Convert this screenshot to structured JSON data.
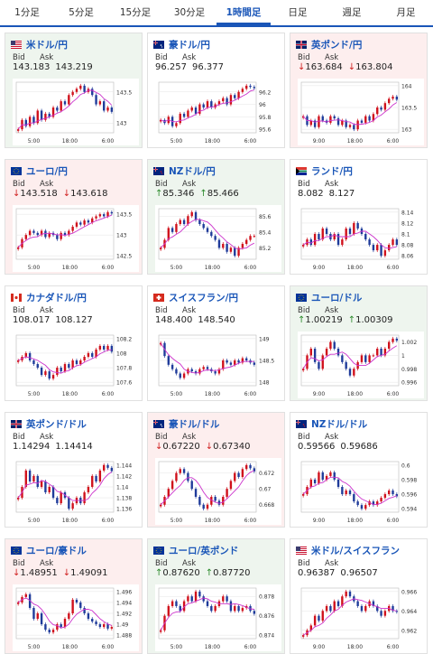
{
  "tabs": [
    "1分足",
    "5分足",
    "15分足",
    "30分足",
    "1時間足",
    "日足",
    "週足",
    "月足"
  ],
  "active_tab": 4,
  "colors": {
    "up": "#d0101b",
    "down": "#1f3b9a",
    "ma": "#cc33cc",
    "link": "#1a56b8"
  },
  "labels": {
    "bid": "Bid",
    "ask": "Ask"
  },
  "cards": [
    {
      "name": "米ドル/円",
      "flags": [
        "us",
        "jp"
      ],
      "state": "up",
      "bid": "143.183",
      "ask": "143.219",
      "trend": "",
      "y_ticks": [
        "143.5",
        "143"
      ],
      "x_ticks": [
        "5:00",
        "18:00",
        "6:00"
      ],
      "series": [
        142.9,
        143.05,
        142.95,
        143.1,
        143.0,
        143.2,
        143.05,
        143.15,
        143.1,
        143.25,
        143.2,
        143.35,
        143.3,
        143.45,
        143.5,
        143.55,
        143.6,
        143.5,
        143.55,
        143.45,
        143.3,
        143.35,
        143.2,
        143.25,
        143.18
      ]
    },
    {
      "name": "豪ドル/円",
      "flags": [
        "au",
        "jp"
      ],
      "state": "none",
      "bid": "96.257",
      "ask": "96.377",
      "trend": "",
      "y_ticks": [
        "96.2",
        "96",
        "95.8",
        "95.6"
      ],
      "x_ticks": [
        "5:00",
        "18:00",
        "6:00"
      ],
      "series": [
        95.75,
        95.7,
        95.8,
        95.65,
        95.7,
        95.85,
        95.8,
        95.9,
        95.95,
        95.85,
        96.0,
        95.95,
        96.05,
        95.95,
        96.0,
        96.05,
        96.1,
        96.0,
        96.15,
        96.1,
        96.2,
        96.25,
        96.3,
        96.28,
        96.26
      ]
    },
    {
      "name": "英ポンド/円",
      "flags": [
        "gb",
        "jp"
      ],
      "state": "down",
      "bid": "163.684",
      "ask": "163.804",
      "trend": "down",
      "y_ticks": [
        "164",
        "163.5",
        "163"
      ],
      "x_ticks": [
        "9:00",
        "18:00",
        "6:00"
      ],
      "series": [
        163.3,
        163.1,
        163.2,
        163.05,
        163.3,
        163.2,
        163.15,
        163.3,
        163.25,
        163.1,
        163.2,
        163.05,
        163.1,
        163.0,
        163.2,
        163.15,
        163.3,
        163.2,
        163.35,
        163.5,
        163.45,
        163.6,
        163.7,
        163.75,
        163.68
      ]
    },
    {
      "name": "ユーロ/円",
      "flags": [
        "eu",
        "jp"
      ],
      "state": "down",
      "bid": "143.518",
      "ask": "143.618",
      "trend": "down",
      "y_ticks": [
        "143.5",
        "143",
        "142.5"
      ],
      "x_ticks": [
        "5:00",
        "18:00",
        "6:00"
      ],
      "series": [
        142.7,
        142.9,
        143.0,
        143.1,
        143.05,
        143.0,
        143.1,
        142.95,
        143.05,
        143.0,
        142.9,
        143.05,
        143.0,
        143.1,
        143.2,
        143.3,
        143.25,
        143.35,
        143.3,
        143.4,
        143.45,
        143.5,
        143.45,
        143.55,
        143.52
      ]
    },
    {
      "name": "NZドル/円",
      "flags": [
        "nz",
        "jp"
      ],
      "state": "up",
      "bid": "85.346",
      "ask": "85.466",
      "trend": "up",
      "y_ticks": [
        "85.6",
        "85.4",
        "85.2"
      ],
      "x_ticks": [
        "5:00",
        "18:00",
        "6:00"
      ],
      "series": [
        85.2,
        85.3,
        85.45,
        85.4,
        85.5,
        85.55,
        85.5,
        85.6,
        85.65,
        85.55,
        85.5,
        85.45,
        85.4,
        85.35,
        85.3,
        85.2,
        85.25,
        85.15,
        85.2,
        85.1,
        85.2,
        85.25,
        85.3,
        85.35,
        85.35
      ]
    },
    {
      "name": "ランド/円",
      "flags": [
        "za",
        "jp"
      ],
      "state": "none",
      "bid": "8.082",
      "ask": "8.127",
      "trend": "",
      "y_ticks": [
        "8.14",
        "8.12",
        "8.1",
        "8.08",
        "8.06"
      ],
      "x_ticks": [
        "9:00",
        "18:00",
        "6:00"
      ],
      "series": [
        8.08,
        8.09,
        8.08,
        8.1,
        8.09,
        8.11,
        8.1,
        8.09,
        8.1,
        8.08,
        8.09,
        8.11,
        8.1,
        8.12,
        8.11,
        8.1,
        8.09,
        8.08,
        8.07,
        8.08,
        8.06,
        8.07,
        8.08,
        8.09,
        8.08
      ]
    },
    {
      "name": "カナダドル/円",
      "flags": [
        "ca",
        "jp"
      ],
      "state": "none",
      "bid": "108.017",
      "ask": "108.127",
      "trend": "",
      "y_ticks": [
        "108.2",
        "108",
        "107.8",
        "107.6"
      ],
      "x_ticks": [
        "5:00",
        "18:00",
        "6:00"
      ],
      "series": [
        107.9,
        107.95,
        108.0,
        107.9,
        107.85,
        107.8,
        107.7,
        107.75,
        107.65,
        107.7,
        107.8,
        107.75,
        107.85,
        107.8,
        107.9,
        107.85,
        107.9,
        107.95,
        108.0,
        107.95,
        108.05,
        108.1,
        108.05,
        108.1,
        108.02
      ]
    },
    {
      "name": "スイスフラン/円",
      "flags": [
        "ch",
        "jp"
      ],
      "state": "none",
      "bid": "148.400",
      "ask": "148.540",
      "trend": "",
      "y_ticks": [
        "149",
        "148.5",
        "148"
      ],
      "x_ticks": [
        "5:00",
        "18:00",
        "6:00"
      ],
      "series": [
        148.9,
        148.6,
        148.4,
        148.3,
        148.2,
        148.1,
        148.2,
        148.3,
        148.25,
        148.2,
        148.3,
        148.35,
        148.3,
        148.25,
        148.2,
        148.3,
        148.5,
        148.45,
        148.4,
        148.5,
        148.45,
        148.55,
        148.5,
        148.45,
        148.4
      ]
    },
    {
      "name": "ユーロ/ドル",
      "flags": [
        "eu",
        "us"
      ],
      "state": "up",
      "bid": "1.00219",
      "ask": "1.00309",
      "trend": "up",
      "y_ticks": [
        "1.002",
        "1",
        "0.998",
        "0.996"
      ],
      "x_ticks": [
        "9:00",
        "18:00",
        "6:00"
      ],
      "series": [
        0.998,
        1.0,
        1.001,
        0.999,
        0.998,
        1.0,
        1.001,
        1.002,
        1.001,
        1.0,
        0.999,
        0.998,
        0.997,
        0.998,
        0.999,
        1.0,
        0.999,
        1.0,
        1.0,
        1.001,
        1.0,
        1.001,
        1.002,
        1.0025,
        1.0022
      ]
    },
    {
      "name": "英ポンド/ドル",
      "flags": [
        "gb",
        "us"
      ],
      "state": "none",
      "bid": "1.14294",
      "ask": "1.14414",
      "trend": "",
      "y_ticks": [
        "1.144",
        "1.142",
        "1.14",
        "1.138",
        "1.136"
      ],
      "x_ticks": [
        "5:00",
        "18:00",
        "6:00"
      ],
      "series": [
        1.138,
        1.14,
        1.143,
        1.141,
        1.142,
        1.14,
        1.141,
        1.139,
        1.14,
        1.138,
        1.137,
        1.139,
        1.138,
        1.136,
        1.137,
        1.138,
        1.137,
        1.139,
        1.14,
        1.142,
        1.141,
        1.143,
        1.144,
        1.1435,
        1.1429
      ]
    },
    {
      "name": "豪ドル/ドル",
      "flags": [
        "au",
        "us"
      ],
      "state": "down",
      "bid": "0.67220",
      "ask": "0.67340",
      "trend": "down",
      "y_ticks": [
        "0.672",
        "0.67",
        "0.668"
      ],
      "x_ticks": [
        "5:00",
        "18:00",
        "6:00"
      ],
      "series": [
        0.668,
        0.669,
        0.67,
        0.671,
        0.672,
        0.6725,
        0.672,
        0.671,
        0.67,
        0.669,
        0.668,
        0.6675,
        0.668,
        0.669,
        0.6685,
        0.668,
        0.669,
        0.67,
        0.671,
        0.672,
        0.6715,
        0.6725,
        0.673,
        0.6726,
        0.6722
      ]
    },
    {
      "name": "NZドル/ドル",
      "flags": [
        "nz",
        "us"
      ],
      "state": "none",
      "bid": "0.59566",
      "ask": "0.59686",
      "trend": "",
      "y_ticks": [
        "0.6",
        "0.598",
        "0.596",
        "0.594"
      ],
      "x_ticks": [
        "9:00",
        "18:00",
        "6:00"
      ],
      "series": [
        0.596,
        0.597,
        0.598,
        0.5975,
        0.599,
        0.598,
        0.5985,
        0.599,
        0.598,
        0.597,
        0.596,
        0.5965,
        0.596,
        0.595,
        0.5945,
        0.594,
        0.5945,
        0.595,
        0.5945,
        0.595,
        0.5955,
        0.596,
        0.5965,
        0.596,
        0.5957
      ]
    },
    {
      "name": "ユーロ/豪ドル",
      "flags": [
        "eu",
        "au"
      ],
      "state": "down",
      "bid": "1.48951",
      "ask": "1.49091",
      "trend": "down",
      "y_ticks": [
        "1.496",
        "1.494",
        "1.492",
        "1.49",
        "1.488"
      ],
      "x_ticks": [
        "5:00",
        "18:00",
        "6:00"
      ],
      "series": [
        1.494,
        1.495,
        1.4955,
        1.493,
        1.491,
        1.492,
        1.49,
        1.489,
        1.4885,
        1.489,
        1.49,
        1.4895,
        1.491,
        1.492,
        1.4945,
        1.494,
        1.493,
        1.492,
        1.491,
        1.4905,
        1.49,
        1.4895,
        1.49,
        1.4892,
        1.4895
      ]
    },
    {
      "name": "ユーロ/英ポンド",
      "flags": [
        "eu",
        "gb"
      ],
      "state": "up",
      "bid": "0.87620",
      "ask": "0.87720",
      "trend": "up",
      "y_ticks": [
        "0.878",
        "0.876",
        "0.874"
      ],
      "x_ticks": [
        "5:00",
        "18:00",
        "6:00"
      ],
      "series": [
        0.8745,
        0.876,
        0.877,
        0.8775,
        0.877,
        0.8765,
        0.8775,
        0.878,
        0.8775,
        0.8785,
        0.878,
        0.8775,
        0.877,
        0.8765,
        0.877,
        0.8775,
        0.878,
        0.8775,
        0.8765,
        0.877,
        0.8765,
        0.8768,
        0.877,
        0.8765,
        0.8762
      ]
    },
    {
      "name": "米ドル/スイスフラン",
      "flags": [
        "us",
        "ch"
      ],
      "state": "none",
      "bid": "0.96387",
      "ask": "0.96507",
      "trend": "",
      "y_ticks": [
        "0.966",
        "0.964",
        "0.962"
      ],
      "x_ticks": [
        "9:00",
        "18:00",
        "6:00"
      ],
      "series": [
        0.9615,
        0.962,
        0.9625,
        0.9635,
        0.963,
        0.964,
        0.9645,
        0.964,
        0.965,
        0.9645,
        0.9655,
        0.966,
        0.9655,
        0.965,
        0.9645,
        0.964,
        0.9645,
        0.965,
        0.9645,
        0.964,
        0.9635,
        0.964,
        0.9645,
        0.964,
        0.9639
      ]
    }
  ]
}
